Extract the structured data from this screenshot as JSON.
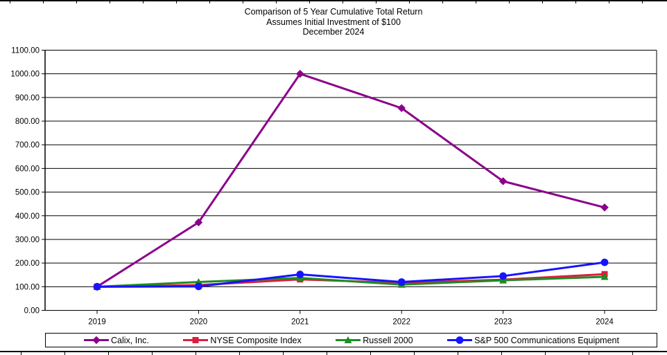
{
  "title": {
    "line1": "Comparison of 5 Year Cumulative Total Return",
    "line2": "Assumes Initial Investment of $100",
    "line3": "December 2024"
  },
  "chart_data": {
    "type": "line",
    "title": "Comparison of 5 Year Cumulative Total Return",
    "subtitle": "Assumes Initial Investment of $100",
    "date_label": "December 2024",
    "categories": [
      "2019",
      "2020",
      "2021",
      "2022",
      "2023",
      "2024"
    ],
    "series": [
      {
        "name": "Calix, Inc.",
        "color": "#8B008B",
        "marker": "diamond",
        "values": [
          100,
          372,
          1000,
          855,
          546,
          435
        ]
      },
      {
        "name": "NYSE Composite Index",
        "color": "#DC1E3C",
        "marker": "square",
        "values": [
          100,
          107,
          131,
          116,
          130,
          153
        ]
      },
      {
        "name": "Russell 2000",
        "color": "#1F8B24",
        "marker": "triangle",
        "values": [
          100,
          120,
          137,
          109,
          127,
          142
        ]
      },
      {
        "name": "S&P 500 Communications Equipment",
        "color": "#1414FF",
        "marker": "circle",
        "values": [
          100,
          101,
          152,
          120,
          145,
          203
        ]
      }
    ],
    "ylim": [
      0,
      1100
    ],
    "y_tick_step": 100,
    "y_ticks": [
      "0.00",
      "100.00",
      "200.00",
      "300.00",
      "400.00",
      "500.00",
      "600.00",
      "700.00",
      "800.00",
      "900.00",
      "1000.00",
      "1100.00"
    ],
    "grid": "horizontal gridlines on",
    "legend_position": "bottom",
    "axis_color": "#000000",
    "background_color": "#FFFFFF"
  }
}
